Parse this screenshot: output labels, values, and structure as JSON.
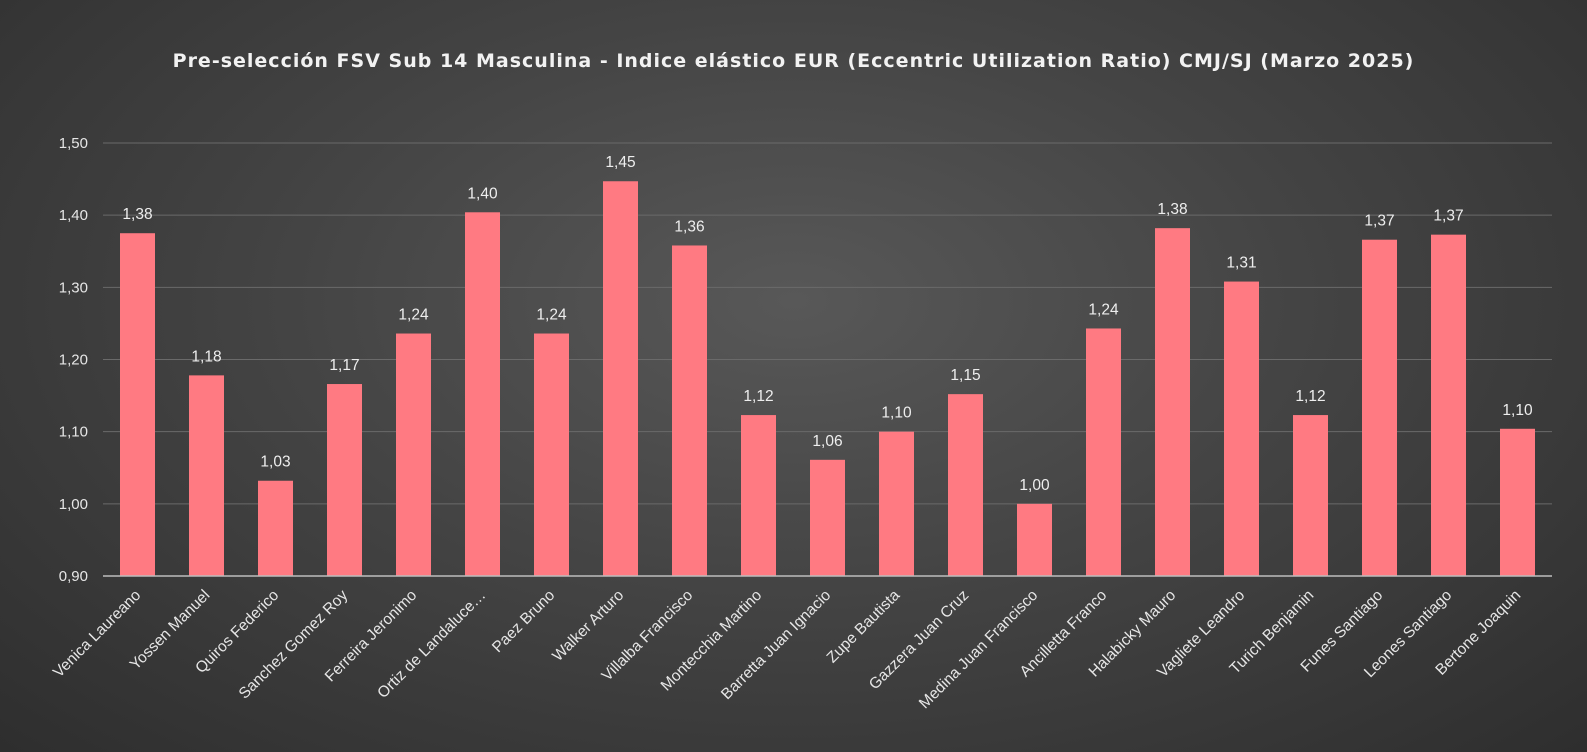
{
  "chart_data": {
    "type": "bar",
    "title": "Pre-selección FSV Sub 14 Masculina - Indice elástico EUR (Eccentric Utilization Ratio) CMJ/SJ (Marzo 2025)",
    "xlabel": "",
    "ylabel": "",
    "ylim": [
      0.9,
      1.5
    ],
    "y_ticks": [
      "0,90",
      "1,00",
      "1,10",
      "1,20",
      "1,30",
      "1,40",
      "1,50"
    ],
    "y_tick_values": [
      0.9,
      1.0,
      1.1,
      1.2,
      1.3,
      1.4,
      1.5
    ],
    "grid": true,
    "legend": "none",
    "bar_color": "#ff7a82",
    "categories": [
      "Venica Laureano",
      "Yossen Manuel",
      "Quiros Federico",
      "Sanchez Gomez Roy",
      "Ferreira Jeronimo",
      "Ortiz de Landaluce…",
      "Paez Bruno",
      "Walker Arturo",
      "Villalba Francisco",
      "Montecchia Martino",
      "Barretta Juan Ignacio",
      "Zupe Bautista",
      "Gazzera Juan Cruz",
      "Medina Juan Francisco",
      "Ancilletta Franco",
      "Halabicky Mauro",
      "Vagliete Leandro",
      "Turich Benjamin",
      "Funes Santiago",
      "Leones Santiago",
      "Bertone Joaquin"
    ],
    "values": [
      1.375,
      1.178,
      1.032,
      1.166,
      1.236,
      1.404,
      1.236,
      1.447,
      1.358,
      1.123,
      1.061,
      1.1,
      1.152,
      1.0,
      1.243,
      1.382,
      1.308,
      1.123,
      1.366,
      1.373,
      1.104
    ],
    "labels": [
      "1,38",
      "1,18",
      "1,03",
      "1,17",
      "1,24",
      "1,40",
      "1,24",
      "1,45",
      "1,36",
      "1,12",
      "1,06",
      "1,10",
      "1,15",
      "1,00",
      "1,24",
      "1,38",
      "1,31",
      "1,12",
      "1,37",
      "1,37",
      "1,10"
    ]
  }
}
